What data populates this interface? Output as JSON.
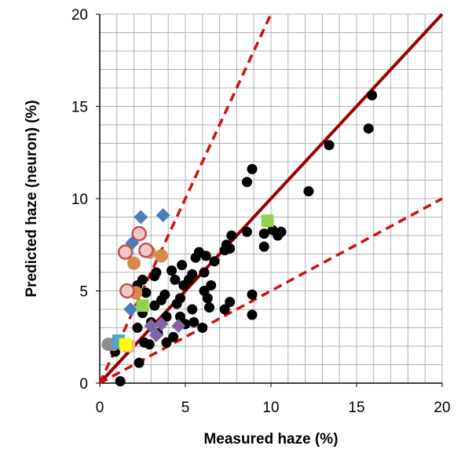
{
  "chart_data": {
    "type": "scatter",
    "title": "",
    "xlabel": "Measured haze (%)",
    "ylabel": "Predicted haze (neuron) (%)",
    "xlim": [
      0,
      20
    ],
    "ylim": [
      0,
      20
    ],
    "x_ticks": [
      0,
      5,
      10,
      15,
      20
    ],
    "y_ticks": [
      0,
      5,
      10,
      15,
      20
    ],
    "grid": true,
    "minor_grid_step": 1,
    "legend": "none",
    "reference_lines": [
      {
        "style": "solid",
        "color": "#990000",
        "slope": 1,
        "points": [
          [
            0,
            0
          ],
          [
            20,
            20
          ]
        ]
      },
      {
        "style": "dashed",
        "color": "#cc1111",
        "slope": 2,
        "points": [
          [
            0,
            0
          ],
          [
            10,
            20
          ]
        ]
      },
      {
        "style": "dashed",
        "color": "#cc1111",
        "slope": 0.5,
        "points": [
          [
            0,
            0
          ],
          [
            20,
            10
          ]
        ]
      }
    ],
    "series": [
      {
        "marker": "circle",
        "color": "#000000",
        "stroke": "#000000",
        "points": [
          [
            1.2,
            0.1
          ],
          [
            2.3,
            1.1
          ],
          [
            0.9,
            1.7
          ],
          [
            1.6,
            1.9
          ],
          [
            2.6,
            2.2
          ],
          [
            2.9,
            2.1
          ],
          [
            3.9,
            2.2
          ],
          [
            4.3,
            2.5
          ],
          [
            2.2,
            3.0
          ],
          [
            3.4,
            2.7
          ],
          [
            3.0,
            3.3
          ],
          [
            3.9,
            3.6
          ],
          [
            5.0,
            3.2
          ],
          [
            5.5,
            3.3
          ],
          [
            4.7,
            3.6
          ],
          [
            6.0,
            3.0
          ],
          [
            2.5,
            3.8
          ],
          [
            3.2,
            4.2
          ],
          [
            3.6,
            4.5
          ],
          [
            4.5,
            4.3
          ],
          [
            5.4,
            4.0
          ],
          [
            6.4,
            4.1
          ],
          [
            7.3,
            4.0
          ],
          [
            7.6,
            4.4
          ],
          [
            2.7,
            4.9
          ],
          [
            3.8,
            4.8
          ],
          [
            4.7,
            4.6
          ],
          [
            6.3,
            4.6
          ],
          [
            6.1,
            5.0
          ],
          [
            2.2,
            5.3
          ],
          [
            3.2,
            5.8
          ],
          [
            4.4,
            5.6
          ],
          [
            4.9,
            5.3
          ],
          [
            5.2,
            5.6
          ],
          [
            6.5,
            5.3
          ],
          [
            2.5,
            5.6
          ],
          [
            3.3,
            6.0
          ],
          [
            4.2,
            6.1
          ],
          [
            5.4,
            5.9
          ],
          [
            6.1,
            6.0
          ],
          [
            4.8,
            6.4
          ],
          [
            5.6,
            6.8
          ],
          [
            6.2,
            6.9
          ],
          [
            6.7,
            6.6
          ],
          [
            7.3,
            7.2
          ],
          [
            7.6,
            7.3
          ],
          [
            7.4,
            7.5
          ],
          [
            5.8,
            7.1
          ],
          [
            7.7,
            8.0
          ],
          [
            8.6,
            8.2
          ],
          [
            9.6,
            8.1
          ],
          [
            10.1,
            8.3
          ],
          [
            10.4,
            8.0
          ],
          [
            10.6,
            8.2
          ],
          [
            9.6,
            7.4
          ],
          [
            8.9,
            4.8
          ],
          [
            8.9,
            3.7
          ],
          [
            8.6,
            10.9
          ],
          [
            8.9,
            11.6
          ],
          [
            12.2,
            10.4
          ],
          [
            13.4,
            12.9
          ],
          [
            15.7,
            13.8
          ],
          [
            15.9,
            15.6
          ]
        ]
      },
      {
        "marker": "diamond",
        "color": "#4a7ebb",
        "stroke": "#4a7ebb",
        "points": [
          [
            2.4,
            9.0
          ],
          [
            3.7,
            9.1
          ],
          [
            1.9,
            7.6
          ],
          [
            1.8,
            4.0
          ]
        ]
      },
      {
        "marker": "circle",
        "color": "#d68a4c",
        "stroke": "#d68a4c",
        "points": [
          [
            3.6,
            6.9
          ],
          [
            2.0,
            6.5
          ],
          [
            2.9,
            7.1
          ],
          [
            2.1,
            4.9
          ]
        ]
      },
      {
        "marker": "circle",
        "color": "#f2c9c9",
        "stroke": "#c0504d",
        "points": [
          [
            2.3,
            8.1
          ],
          [
            1.5,
            7.1
          ],
          [
            2.7,
            7.2
          ],
          [
            1.6,
            5.0
          ]
        ]
      },
      {
        "marker": "square",
        "color": "#92d050",
        "stroke": "#92d050",
        "points": [
          [
            9.8,
            8.8
          ],
          [
            2.5,
            4.2
          ]
        ]
      },
      {
        "marker": "diamond",
        "color": "#8064a2",
        "stroke": "#8064a2",
        "points": [
          [
            3.0,
            3.1
          ],
          [
            3.6,
            3.2
          ],
          [
            4.6,
            3.1
          ],
          [
            3.3,
            2.6
          ]
        ]
      },
      {
        "marker": "circle",
        "color": "#8c8c8c",
        "stroke": "#8c8c8c",
        "points": [
          [
            0.5,
            2.1
          ],
          [
            0.8,
            2.1
          ]
        ]
      },
      {
        "marker": "square",
        "color": "#4bacc6",
        "stroke": "#4bacc6",
        "points": [
          [
            1.1,
            2.3
          ]
        ]
      },
      {
        "marker": "square",
        "color": "#e6b9a3",
        "stroke": "#e6b9a3",
        "points": [
          [
            1.7,
            2.0
          ]
        ]
      },
      {
        "marker": "square",
        "color": "#ffff00",
        "stroke": "#ffff00",
        "points": [
          [
            1.5,
            2.1
          ]
        ]
      }
    ]
  }
}
